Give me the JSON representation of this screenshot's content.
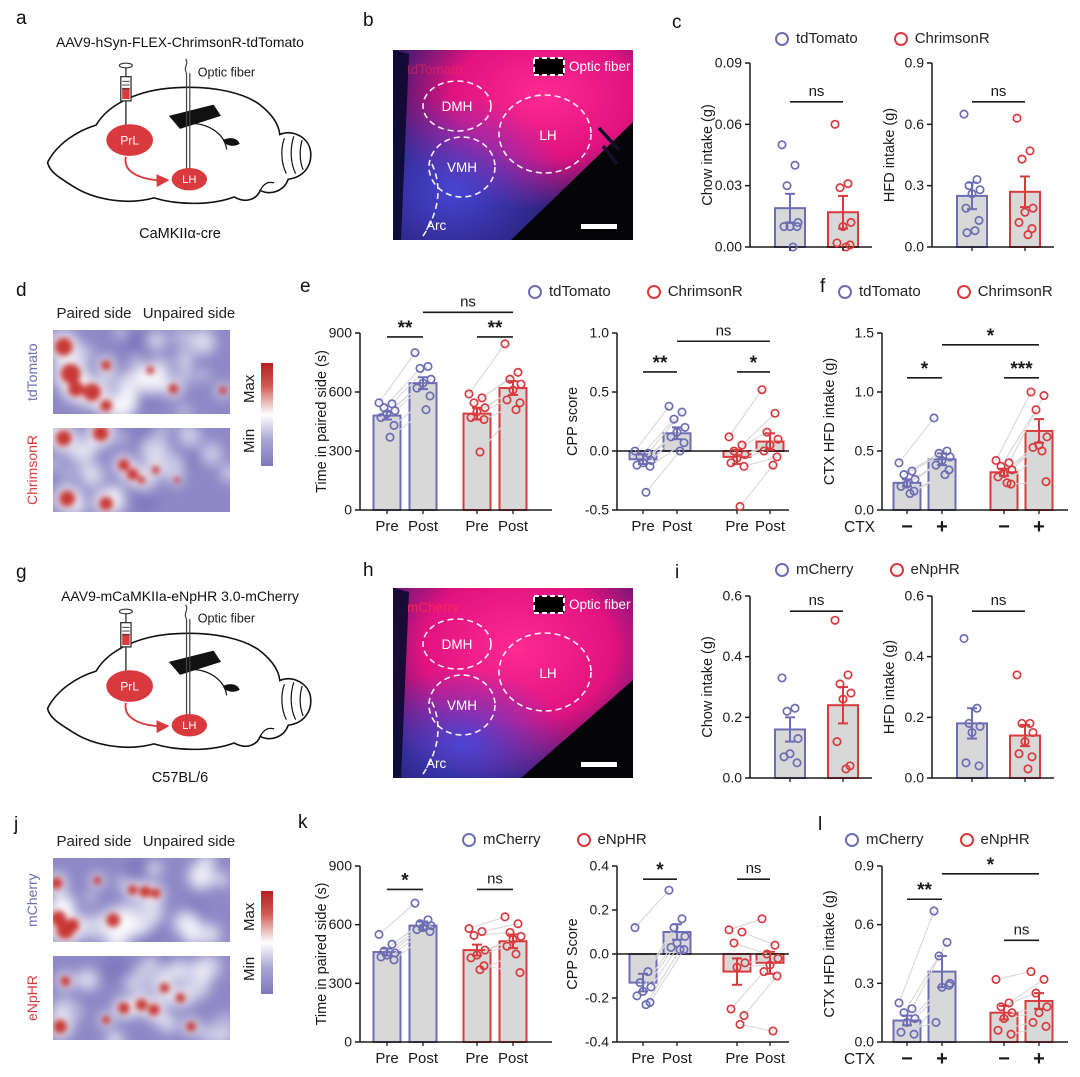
{
  "colors": {
    "purple": "#6c6db4",
    "red": "#d93a3d",
    "bar_fill": "#d8d8d8",
    "pair_line": "#d7d7d7",
    "ink": "#1a1a1a",
    "heat_base": "#8e89c6",
    "heat_hot": "#c7332d",
    "heat_cold": "#7b74ba"
  },
  "p": {
    "a": {
      "letter": "a",
      "title": "AAV9-hSyn-FLEX-ChrimsonR-tdTomato",
      "optic_fiber": "Optic fiber",
      "injection_site": "PrL",
      "target": "LH",
      "caption": "CaMKIIα-cre"
    },
    "b": {
      "letter": "b",
      "tag": "tdTomato",
      "optic_fiber": "Optic fiber",
      "regions": [
        "DMH",
        "LH",
        "VMH",
        "Arc"
      ]
    },
    "c": {
      "letter": "c",
      "legend": [
        {
          "label": "tdTomato",
          "color": "purple"
        },
        {
          "label": "ChrimsonR",
          "color": "red"
        }
      ]
    },
    "d": {
      "letter": "d",
      "col_left": "Paired side",
      "col_right": "Unpaired side",
      "scale_max": "Max",
      "scale_min": "Min",
      "rows": [
        {
          "label": "tdTomato",
          "color": "purple"
        },
        {
          "label": "ChrimsonR",
          "color": "red"
        }
      ]
    },
    "e": {
      "letter": "e",
      "legend": [
        {
          "label": "tdTomato",
          "color": "purple"
        },
        {
          "label": "ChrimsonR",
          "color": "red"
        }
      ]
    },
    "f": {
      "letter": "f",
      "legend": [
        {
          "label": "tdTomato",
          "color": "purple"
        },
        {
          "label": "ChrimsonR",
          "color": "red"
        }
      ]
    },
    "g": {
      "letter": "g",
      "title": "AAV9-mCaMKIIa-eNpHR 3.0-mCherry",
      "optic_fiber": "Optic fiber",
      "injection_site": "PrL",
      "target": "LH",
      "caption": "C57BL/6"
    },
    "h": {
      "letter": "h",
      "tag": "mCherry",
      "optic_fiber": "Optic fiber",
      "regions": [
        "DMH",
        "LH",
        "VMH",
        "Arc"
      ]
    },
    "i": {
      "letter": "i",
      "legend": [
        {
          "label": "mCherry",
          "color": "purple"
        },
        {
          "label": "eNpHR",
          "color": "red"
        }
      ]
    },
    "j": {
      "letter": "j",
      "col_left": "Paired side",
      "col_right": "Unpaired side",
      "scale_max": "Max",
      "scale_min": "Min",
      "rows": [
        {
          "label": "mCherry",
          "color": "purple"
        },
        {
          "label": "eNpHR",
          "color": "red"
        }
      ]
    },
    "k": {
      "letter": "k",
      "legend": [
        {
          "label": "mCherry",
          "color": "purple"
        },
        {
          "label": "eNpHR",
          "color": "red"
        }
      ]
    },
    "l": {
      "letter": "l",
      "legend": [
        {
          "label": "mCherry",
          "color": "purple"
        },
        {
          "label": "eNpHR",
          "color": "red"
        }
      ]
    }
  },
  "chart_data": [
    {
      "id": "c_chow",
      "type": "bar",
      "ylabel": "Chow intake (g)",
      "ylim": [
        0,
        0.09
      ],
      "yticks": [
        0,
        0.03,
        0.06,
        0.09
      ],
      "ytick_labels": [
        "0.00",
        "0.03",
        "0.06",
        "0.09"
      ],
      "xlabels": [
        "",
        ""
      ],
      "bars": [
        {
          "label": "tdTomato",
          "color": "purple",
          "mean": 0.019,
          "sem": 0.007,
          "points": [
            0.05,
            0.04,
            0.03,
            0.012,
            0.01,
            0.01,
            0.01,
            0
          ]
        },
        {
          "label": "ChrimsonR",
          "color": "red",
          "mean": 0.017,
          "sem": 0.008,
          "points": [
            0.06,
            0.031,
            0.029,
            0.012,
            0.01,
            0.002,
            0.001,
            0
          ]
        }
      ],
      "sig": [
        {
          "a": 0,
          "b": 1,
          "label": "ns",
          "y": 0.071
        }
      ]
    },
    {
      "id": "c_hfd",
      "type": "bar",
      "ylabel": "HFD intake (g)",
      "ylim": [
        0,
        0.9
      ],
      "yticks": [
        0,
        0.3,
        0.6,
        0.9
      ],
      "ytick_labels": [
        "0.0",
        "0.3",
        "0.6",
        "0.9"
      ],
      "xlabels": [
        "",
        ""
      ],
      "bars": [
        {
          "label": "tdTomato",
          "color": "purple",
          "mean": 0.25,
          "sem": 0.065,
          "points": [
            0.65,
            0.33,
            0.3,
            0.28,
            0.26,
            0.19,
            0.13,
            0.08,
            0.07
          ]
        },
        {
          "label": "ChrimsonR",
          "color": "red",
          "mean": 0.27,
          "sem": 0.075,
          "points": [
            0.63,
            0.47,
            0.43,
            0.19,
            0.17,
            0.12,
            0.09,
            0.06
          ]
        }
      ],
      "sig": [
        {
          "a": 0,
          "b": 1,
          "label": "ns",
          "y": 0.71
        }
      ]
    },
    {
      "id": "e_time",
      "type": "bar",
      "ylabel": "Time in paired side (s)",
      "ylim": [
        0,
        900
      ],
      "yticks": [
        0,
        300,
        600,
        900
      ],
      "ytick_labels": [
        "0",
        "300",
        "600",
        "900"
      ],
      "xlabels": [
        "Pre",
        "Post",
        "Pre",
        "Post"
      ],
      "paired": [
        [
          0,
          1
        ],
        [
          2,
          3
        ]
      ],
      "bars": [
        {
          "label": "tdTomato Pre",
          "color": "purple",
          "mean": 480,
          "sem": 20,
          "points": [
            545,
            540,
            520,
            505,
            490,
            470,
            430,
            370
          ]
        },
        {
          "label": "tdTomato Post",
          "color": "purple",
          "mean": 645,
          "sem": 30,
          "points": [
            800,
            730,
            720,
            665,
            645,
            620,
            580,
            510
          ]
        },
        {
          "label": "ChrimsonR Pre",
          "color": "red",
          "mean": 490,
          "sem": 30,
          "points": [
            590,
            570,
            545,
            520,
            500,
            470,
            460,
            295
          ]
        },
        {
          "label": "ChrimsonR Post",
          "color": "red",
          "mean": 620,
          "sem": 35,
          "points": [
            845,
            700,
            665,
            640,
            610,
            560,
            545,
            510
          ]
        }
      ],
      "sig": [
        {
          "a": 0,
          "b": 1,
          "label": "**",
          "y": 880
        },
        {
          "a": 2,
          "b": 3,
          "label": "**",
          "y": 880
        },
        {
          "a": 1,
          "b": 3,
          "label": "ns",
          "y": 1005
        }
      ]
    },
    {
      "id": "e_cpp",
      "type": "bar",
      "ylabel": "CPP score",
      "ylim": [
        -0.5,
        1
      ],
      "yticks": [
        -0.5,
        0,
        0.5,
        1
      ],
      "ytick_labels": [
        "-0.5",
        "0.0",
        "0.5",
        "1.0"
      ],
      "xlabels": [
        "Pre",
        "Post",
        "Pre",
        "Post"
      ],
      "paired": [
        [
          0,
          1
        ],
        [
          2,
          3
        ]
      ],
      "zero_line": true,
      "bars": [
        {
          "label": "tdTomato Pre",
          "color": "purple",
          "mean": -0.07,
          "sem": 0.04,
          "points": [
            0,
            -0.02,
            -0.05,
            -0.08,
            -0.1,
            -0.12,
            -0.13,
            -0.35
          ]
        },
        {
          "label": "tdTomato Post",
          "color": "purple",
          "mean": 0.15,
          "sem": 0.05,
          "points": [
            0.38,
            0.33,
            0.27,
            0.2,
            0.16,
            0.12,
            0.07,
            0
          ]
        },
        {
          "label": "ChrimsonR Pre",
          "color": "red",
          "mean": -0.05,
          "sem": 0.06,
          "points": [
            0.12,
            0.05,
            0,
            -0.03,
            -0.06,
            -0.1,
            -0.13,
            -0.47
          ]
        },
        {
          "label": "ChrimsonR Post",
          "color": "red",
          "mean": 0.08,
          "sem": 0.07,
          "points": [
            0.52,
            0.32,
            0.16,
            0.1,
            0.05,
            0,
            -0.05,
            -0.12
          ]
        }
      ],
      "sig": [
        {
          "a": 0,
          "b": 1,
          "label": "**",
          "y": 0.67
        },
        {
          "a": 2,
          "b": 3,
          "label": "*",
          "y": 0.67
        },
        {
          "a": 1,
          "b": 3,
          "label": "ns",
          "y": 0.93
        }
      ]
    },
    {
      "id": "f_ctx",
      "type": "bar",
      "ylabel": "CTX HFD intake (g)",
      "ylim": [
        0,
        1.5
      ],
      "yticks": [
        0,
        0.5,
        1,
        1.5
      ],
      "ytick_labels": [
        "0.0",
        "0.5",
        "1.0",
        "1.5"
      ],
      "xlabels": [
        "−",
        "+",
        "−",
        "+"
      ],
      "xbold": true,
      "xprefix": "CTX",
      "paired": [
        [
          0,
          1
        ],
        [
          2,
          3
        ]
      ],
      "bars": [
        {
          "label": "tdTomato CTX−",
          "color": "purple",
          "mean": 0.23,
          "sem": 0.03,
          "points": [
            0.4,
            0.33,
            0.3,
            0.26,
            0.22,
            0.2,
            0.16,
            0.14
          ]
        },
        {
          "label": "tdTomato CTX+",
          "color": "purple",
          "mean": 0.43,
          "sem": 0.05,
          "points": [
            0.78,
            0.5,
            0.48,
            0.45,
            0.42,
            0.38,
            0.34,
            0.3
          ]
        },
        {
          "label": "ChrimsonR CTX−",
          "color": "red",
          "mean": 0.32,
          "sem": 0.03,
          "points": [
            0.42,
            0.4,
            0.37,
            0.34,
            0.31,
            0.28,
            0.22,
            0.23
          ]
        },
        {
          "label": "ChrimsonR CTX+",
          "color": "red",
          "mean": 0.67,
          "sem": 0.1,
          "points": [
            1.0,
            0.97,
            0.85,
            0.62,
            0.55,
            0.53,
            0.24,
            0.5
          ]
        }
      ],
      "sig": [
        {
          "a": 0,
          "b": 1,
          "label": "*",
          "y": 1.12
        },
        {
          "a": 2,
          "b": 3,
          "label": "***",
          "y": 1.12
        },
        {
          "a": 1,
          "b": 3,
          "label": "*",
          "y": 1.4
        }
      ]
    },
    {
      "id": "i_chow",
      "type": "bar",
      "ylabel": "Chow intake (g)",
      "ylim": [
        0,
        0.6
      ],
      "yticks": [
        0,
        0.2,
        0.4,
        0.6
      ],
      "ytick_labels": [
        "0.0",
        "0.2",
        "0.4",
        "0.6"
      ],
      "xlabels": [
        "",
        ""
      ],
      "bars": [
        {
          "label": "mCherry",
          "color": "purple",
          "mean": 0.16,
          "sem": 0.04,
          "points": [
            0.33,
            0.23,
            0.22,
            0.13,
            0.08,
            0.07,
            0.05
          ]
        },
        {
          "label": "eNpHR",
          "color": "red",
          "mean": 0.24,
          "sem": 0.06,
          "points": [
            0.52,
            0.34,
            0.31,
            0.28,
            0.26,
            0.12,
            0.04,
            0.03
          ]
        }
      ],
      "sig": [
        {
          "a": 0,
          "b": 1,
          "label": "ns",
          "y": 0.55
        }
      ]
    },
    {
      "id": "i_hfd",
      "type": "bar",
      "ylabel": "HFD intake (g)",
      "ylim": [
        0,
        0.6
      ],
      "yticks": [
        0,
        0.2,
        0.4,
        0.6
      ],
      "ytick_labels": [
        "0.0",
        "0.2",
        "0.4",
        "0.6"
      ],
      "xlabels": [
        "",
        ""
      ],
      "bars": [
        {
          "label": "mCherry",
          "color": "purple",
          "mean": 0.18,
          "sem": 0.05,
          "points": [
            0.46,
            0.23,
            0.18,
            0.17,
            0.15,
            0.05,
            0.04
          ]
        },
        {
          "label": "eNpHR",
          "color": "red",
          "mean": 0.14,
          "sem": 0.035,
          "points": [
            0.34,
            0.18,
            0.18,
            0.15,
            0.12,
            0.08,
            0.07,
            0.03
          ]
        }
      ],
      "sig": [
        {
          "a": 0,
          "b": 1,
          "label": "ns",
          "y": 0.55
        }
      ]
    },
    {
      "id": "k_time",
      "type": "bar",
      "ylabel": "Time in paired side (s)",
      "ylim": [
        0,
        900
      ],
      "yticks": [
        0,
        300,
        600,
        900
      ],
      "ytick_labels": [
        "0",
        "300",
        "600",
        "900"
      ],
      "xlabels": [
        "Pre",
        "Post",
        "Pre",
        "Post"
      ],
      "paired": [
        [
          0,
          1
        ],
        [
          2,
          3
        ]
      ],
      "bars": [
        {
          "label": "mCherry Pre",
          "color": "purple",
          "mean": 460,
          "sem": 18,
          "points": [
            550,
            500,
            465,
            455,
            445,
            435,
            420
          ]
        },
        {
          "label": "mCherry Post",
          "color": "purple",
          "mean": 595,
          "sem": 20,
          "points": [
            710,
            625,
            605,
            595,
            585,
            575,
            565
          ]
        },
        {
          "label": "eNpHR Pre",
          "color": "red",
          "mean": 470,
          "sem": 28,
          "points": [
            580,
            565,
            545,
            470,
            445,
            430,
            390,
            370
          ]
        },
        {
          "label": "eNpHR Post",
          "color": "red",
          "mean": 515,
          "sem": 35,
          "points": [
            640,
            605,
            560,
            540,
            525,
            490,
            355,
            450
          ]
        }
      ],
      "sig": [
        {
          "a": 0,
          "b": 1,
          "label": "*",
          "y": 780
        },
        {
          "a": 2,
          "b": 3,
          "label": "ns",
          "y": 780
        }
      ]
    },
    {
      "id": "k_cpp",
      "type": "bar",
      "ylabel": "CPP Score",
      "ylim": [
        -0.4,
        0.4
      ],
      "yticks": [
        -0.4,
        -0.2,
        0,
        0.2,
        0.4
      ],
      "ytick_labels": [
        "-0.4",
        "-0.2",
        "0.0",
        "0.2",
        "0.4"
      ],
      "xlabels": [
        "Pre",
        "Post",
        "Pre",
        "Post"
      ],
      "paired": [
        [
          0,
          1
        ],
        [
          2,
          3
        ]
      ],
      "zero_line": true,
      "bars": [
        {
          "label": "mCherry Pre",
          "color": "purple",
          "mean": -0.13,
          "sem": 0.04,
          "points": [
            0.12,
            -0.08,
            -0.13,
            -0.15,
            -0.17,
            -0.19,
            -0.22,
            -0.23
          ]
        },
        {
          "label": "mCherry Post",
          "color": "purple",
          "mean": 0.1,
          "sem": 0.035,
          "points": [
            0.29,
            0.16,
            0.12,
            0.08,
            0.05,
            0.03,
            0.02,
            0.02
          ]
        },
        {
          "label": "eNpHR Pre",
          "color": "red",
          "mean": -0.08,
          "sem": 0.06,
          "points": [
            0.11,
            0.1,
            0.05,
            -0.04,
            -0.06,
            -0.25,
            -0.28,
            -0.32
          ]
        },
        {
          "label": "eNpHR Post",
          "color": "red",
          "mean": -0.04,
          "sem": 0.05,
          "points": [
            0.16,
            0.04,
            0,
            -0.02,
            -0.05,
            -0.08,
            -0.1,
            -0.35
          ]
        }
      ],
      "sig": [
        {
          "a": 0,
          "b": 1,
          "label": "*",
          "y": 0.34
        },
        {
          "a": 2,
          "b": 3,
          "label": "ns",
          "y": 0.34
        }
      ]
    },
    {
      "id": "l_ctx",
      "type": "bar",
      "ylabel": "CTX HFD intake (g)",
      "ylim": [
        0,
        0.9
      ],
      "yticks": [
        0,
        0.3,
        0.6,
        0.9
      ],
      "ytick_labels": [
        "0.0",
        "0.3",
        "0.6",
        "0.9"
      ],
      "xlabels": [
        "−",
        "+",
        "−",
        "+"
      ],
      "xbold": true,
      "xprefix": "CTX",
      "paired": [
        [
          0,
          1
        ],
        [
          2,
          3
        ]
      ],
      "bars": [
        {
          "label": "mCherry CTX−",
          "color": "purple",
          "mean": 0.11,
          "sem": 0.025,
          "points": [
            0.2,
            0.17,
            0.15,
            0.12,
            0.1,
            0.05,
            0.04
          ]
        },
        {
          "label": "mCherry CTX+",
          "color": "purple",
          "mean": 0.36,
          "sem": 0.08,
          "points": [
            0.67,
            0.51,
            0.44,
            0.3,
            0.28,
            0.1,
            0.29
          ]
        },
        {
          "label": "eNpHR CTX−",
          "color": "red",
          "mean": 0.15,
          "sem": 0.035,
          "points": [
            0.32,
            0.2,
            0.18,
            0.15,
            0.12,
            0.06,
            0.04
          ]
        },
        {
          "label": "eNpHR CTX+",
          "color": "red",
          "mean": 0.21,
          "sem": 0.04,
          "points": [
            0.36,
            0.32,
            0.25,
            0.18,
            0.15,
            0.1,
            0.08
          ]
        }
      ],
      "sig": [
        {
          "a": 0,
          "b": 1,
          "label": "**",
          "y": 0.73
        },
        {
          "a": 2,
          "b": 3,
          "label": "ns",
          "y": 0.52
        },
        {
          "a": 1,
          "b": 3,
          "label": "*",
          "y": 0.86
        }
      ]
    }
  ]
}
